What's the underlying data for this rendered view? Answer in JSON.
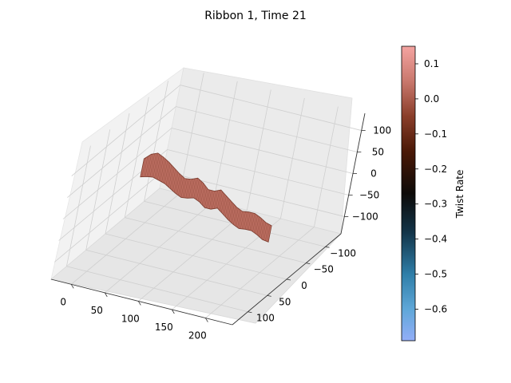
{
  "chart_data": {
    "type": "surface3d",
    "title": "Ribbon 1, Time 21",
    "x_ticks": [
      "0",
      "50",
      "100",
      "150",
      "200"
    ],
    "y_ticks": [
      "−100",
      "−50",
      "0",
      "50",
      "100"
    ],
    "z_ticks": [
      "−100",
      "−50",
      "0",
      "50",
      "100"
    ],
    "xlim": [
      -30,
      240
    ],
    "ylim": [
      -140,
      140
    ],
    "zlim": [
      -140,
      140
    ],
    "grid": true,
    "colorbar": {
      "label": "Twist Rate",
      "range": [
        -0.69,
        0.15
      ],
      "ticks": [
        "0.1",
        "0.0",
        "−0.1",
        "−0.2",
        "−0.3",
        "−0.4",
        "−0.5",
        "−0.6"
      ],
      "tick_values": [
        0.1,
        0.0,
        -0.1,
        -0.2,
        -0.3,
        -0.4,
        -0.5,
        -0.6
      ],
      "colormap_stops": [
        {
          "v": 0.15,
          "color": "#f4a4a1"
        },
        {
          "v": 0.05,
          "color": "#c9786d"
        },
        {
          "v": -0.05,
          "color": "#8a3e2a"
        },
        {
          "v": -0.15,
          "color": "#4a1806"
        },
        {
          "v": -0.27,
          "color": "#0d0a08"
        },
        {
          "v": -0.38,
          "color": "#123448"
        },
        {
          "v": -0.5,
          "color": "#2f7ea8"
        },
        {
          "v": -0.6,
          "color": "#5fa7d8"
        },
        {
          "v": -0.69,
          "color": "#93aef8"
        }
      ]
    },
    "ribbon": {
      "color": "#c27366",
      "stripe_color": "#7a3a2c",
      "x": [
        0,
        10,
        20,
        30,
        40,
        50,
        60,
        70,
        80,
        90,
        100,
        110,
        120,
        130,
        140,
        150,
        160,
        170,
        180,
        190,
        200,
        210,
        220
      ],
      "y": [
        -8,
        -6,
        -4,
        -2,
        0,
        2,
        4,
        6,
        8,
        10,
        12,
        14,
        16,
        18,
        20,
        22,
        24,
        26,
        28,
        30,
        32,
        34,
        36
      ],
      "z_top": [
        40,
        56,
        64,
        60,
        54,
        46,
        38,
        32,
        36,
        44,
        38,
        28,
        30,
        38,
        30,
        22,
        14,
        10,
        14,
        16,
        12,
        6,
        4
      ],
      "z_bottom": [
        -2,
        4,
        8,
        6,
        4,
        -2,
        -8,
        -12,
        -8,
        -2,
        -6,
        -14,
        -12,
        -4,
        -12,
        -20,
        -26,
        -30,
        -26,
        -24,
        -28,
        -34,
        -34
      ]
    }
  }
}
